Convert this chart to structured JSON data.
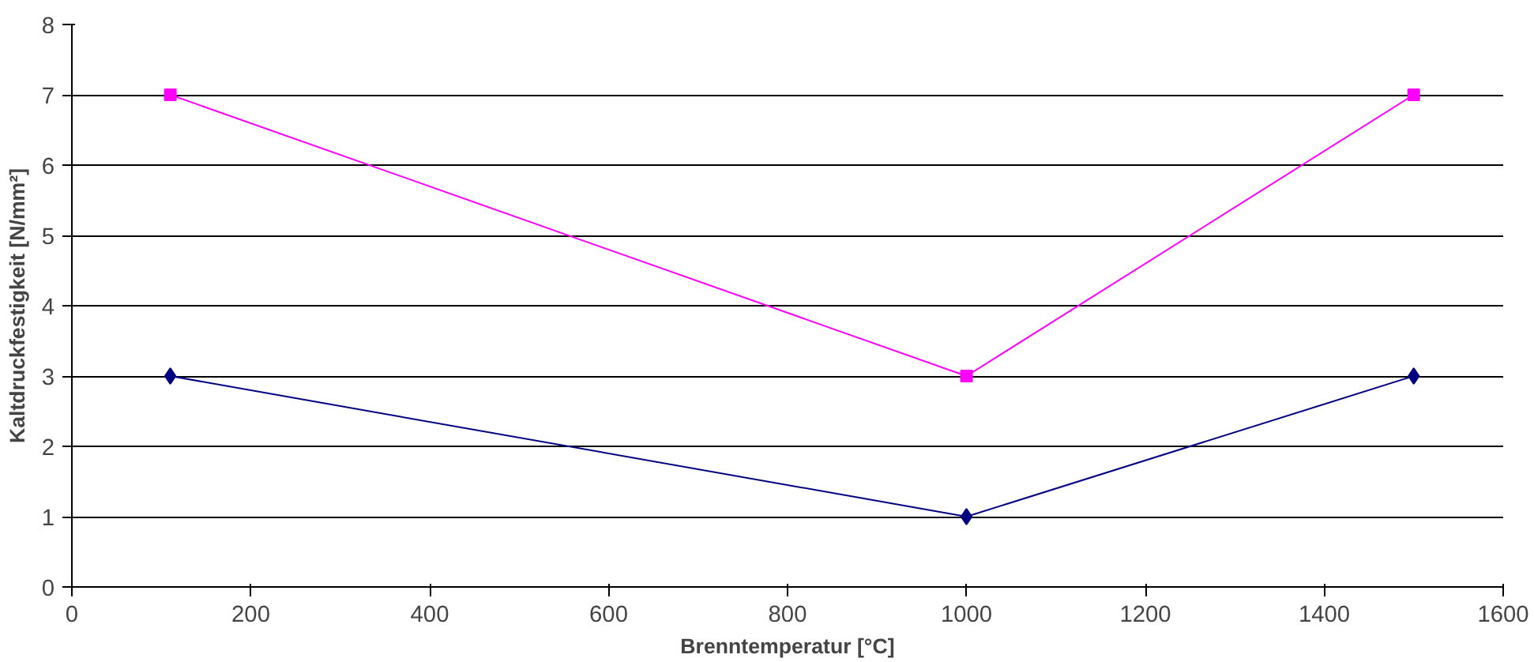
{
  "chart_data": {
    "type": "line",
    "xlabel": "Brenntemperatur [°C]",
    "ylabel": "Kaltdruckfestigkeit [N/mm²]",
    "x": [
      110,
      1000,
      1500
    ],
    "series": [
      {
        "color": "#ff00ff",
        "values": [
          7,
          3,
          7
        ],
        "marker": "square"
      },
      {
        "color": "#000080",
        "values": [
          3,
          1,
          3
        ],
        "marker": "diamond"
      }
    ],
    "xlim": [
      0,
      1600
    ],
    "xticks": [
      0,
      200,
      400,
      600,
      800,
      1000,
      1200,
      1400,
      1600
    ],
    "ylim": [
      0,
      8
    ],
    "yticks": [
      0,
      1,
      2,
      3,
      4,
      5,
      6,
      7,
      8
    ],
    "grid": "y",
    "line_style": "solid"
  }
}
